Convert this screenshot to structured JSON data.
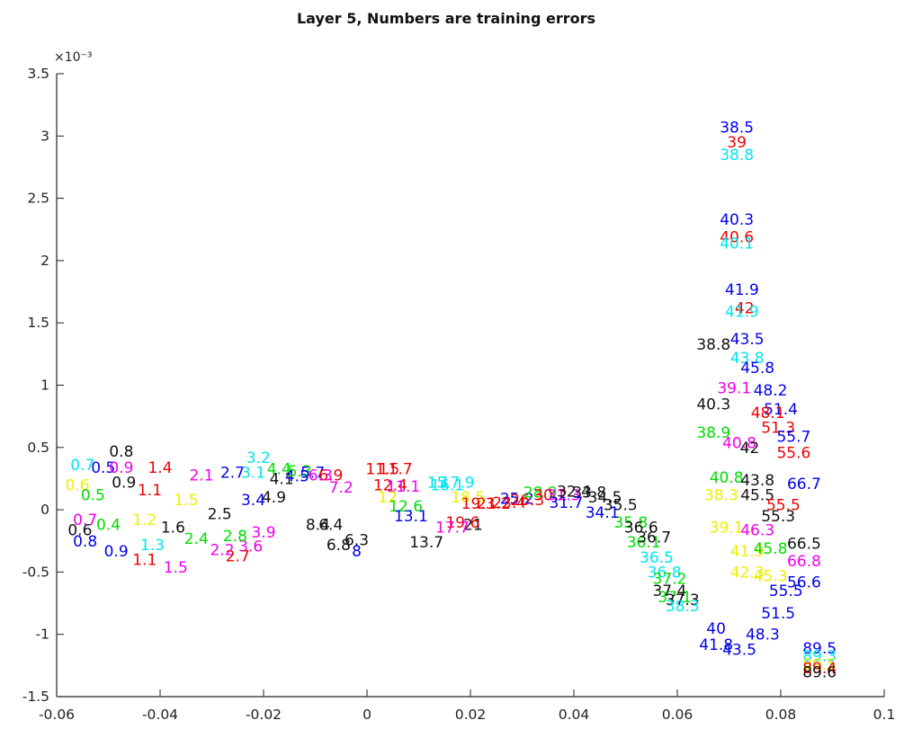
{
  "chart_data": {
    "type": "scatter",
    "title": "Layer 5, Numbers are training errors",
    "xlabel": "",
    "ylabel": "",
    "xlim": [
      -0.06,
      0.1
    ],
    "ylim": [
      -1.5,
      3.5
    ],
    "y_exponent_label": "×10⁻³",
    "x_ticks": [
      -0.06,
      -0.04,
      -0.02,
      0,
      0.02,
      0.04,
      0.06,
      0.08,
      0.1
    ],
    "x_tick_labels": [
      "-0.06",
      "-0.04",
      "-0.02",
      "0",
      "0.02",
      "0.04",
      "0.06",
      "0.08",
      "0.1"
    ],
    "y_ticks": [
      -1.5,
      -1,
      -0.5,
      0,
      0.5,
      1,
      1.5,
      2,
      2.5,
      3,
      3.5
    ],
    "y_tick_labels": [
      "-1.5",
      "-1",
      "-0.5",
      "0",
      "0.5",
      "1",
      "1.5",
      "2",
      "2.5",
      "3",
      "3.5"
    ],
    "grid": false,
    "colors": {
      "blue": "#0000ee",
      "red": "#ee0000",
      "cyan": "#00e5ee",
      "black": "#111111",
      "green": "#00dd00",
      "magenta": "#ee00ee",
      "yellow": "#eeee00"
    },
    "points": [
      {
        "x": 0.0715,
        "y": 3.07,
        "label": "38.5",
        "color": "blue"
      },
      {
        "x": 0.0715,
        "y": 2.95,
        "label": "39",
        "color": "red"
      },
      {
        "x": 0.0715,
        "y": 2.85,
        "label": "38.8",
        "color": "cyan"
      },
      {
        "x": 0.0715,
        "y": 2.33,
        "label": "40.3",
        "color": "blue"
      },
      {
        "x": 0.0715,
        "y": 2.19,
        "label": "40.6",
        "color": "red"
      },
      {
        "x": 0.0715,
        "y": 2.14,
        "label": "40.1",
        "color": "cyan"
      },
      {
        "x": 0.0725,
        "y": 1.77,
        "label": "41.9",
        "color": "blue"
      },
      {
        "x": 0.073,
        "y": 1.62,
        "label": "42",
        "color": "red"
      },
      {
        "x": 0.0725,
        "y": 1.59,
        "label": "41.9",
        "color": "cyan"
      },
      {
        "x": 0.067,
        "y": 1.33,
        "label": "38.8",
        "color": "black"
      },
      {
        "x": 0.0735,
        "y": 1.37,
        "label": "43.5",
        "color": "blue"
      },
      {
        "x": 0.0735,
        "y": 1.22,
        "label": "43.8",
        "color": "cyan"
      },
      {
        "x": 0.0755,
        "y": 1.14,
        "label": "45.8",
        "color": "blue"
      },
      {
        "x": 0.071,
        "y": 0.98,
        "label": "39.1",
        "color": "magenta"
      },
      {
        "x": 0.078,
        "y": 0.96,
        "label": "48.2",
        "color": "blue"
      },
      {
        "x": 0.067,
        "y": 0.85,
        "label": "40.3",
        "color": "black"
      },
      {
        "x": 0.08,
        "y": 0.81,
        "label": "51.4",
        "color": "blue"
      },
      {
        "x": 0.0775,
        "y": 0.78,
        "label": "48.1",
        "color": "red"
      },
      {
        "x": 0.0795,
        "y": 0.66,
        "label": "51.3",
        "color": "red"
      },
      {
        "x": 0.067,
        "y": 0.62,
        "label": "38.9",
        "color": "green"
      },
      {
        "x": 0.0825,
        "y": 0.59,
        "label": "55.7",
        "color": "blue"
      },
      {
        "x": 0.072,
        "y": 0.54,
        "label": "40.8",
        "color": "magenta"
      },
      {
        "x": 0.074,
        "y": 0.5,
        "label": "42",
        "color": "black"
      },
      {
        "x": 0.0825,
        "y": 0.46,
        "label": "55.6",
        "color": "red"
      },
      {
        "x": 0.0695,
        "y": 0.26,
        "label": "40.8",
        "color": "green"
      },
      {
        "x": 0.0755,
        "y": 0.24,
        "label": "43.8",
        "color": "black"
      },
      {
        "x": 0.0845,
        "y": 0.21,
        "label": "66.7",
        "color": "blue"
      },
      {
        "x": 0.0685,
        "y": 0.12,
        "label": "38.3",
        "color": "yellow"
      },
      {
        "x": 0.0755,
        "y": 0.12,
        "label": "45.5",
        "color": "black"
      },
      {
        "x": 0.0805,
        "y": 0.04,
        "label": "55.5",
        "color": "red"
      },
      {
        "x": 0.0795,
        "y": -0.05,
        "label": "55.3",
        "color": "black"
      },
      {
        "x": 0.0695,
        "y": -0.14,
        "label": "39.1",
        "color": "yellow"
      },
      {
        "x": 0.0755,
        "y": -0.16,
        "label": "46.3",
        "color": "magenta"
      },
      {
        "x": 0.0845,
        "y": -0.27,
        "label": "66.5",
        "color": "black"
      },
      {
        "x": 0.0735,
        "y": -0.33,
        "label": "41.9",
        "color": "yellow"
      },
      {
        "x": 0.078,
        "y": -0.31,
        "label": "45.8",
        "color": "green"
      },
      {
        "x": 0.0845,
        "y": -0.41,
        "label": "66.8",
        "color": "magenta"
      },
      {
        "x": 0.0735,
        "y": -0.5,
        "label": "42.3",
        "color": "yellow"
      },
      {
        "x": 0.078,
        "y": -0.53,
        "label": "45.3",
        "color": "yellow"
      },
      {
        "x": 0.0845,
        "y": -0.58,
        "label": "56.6",
        "color": "blue"
      },
      {
        "x": 0.081,
        "y": -0.65,
        "label": "55.5",
        "color": "blue"
      },
      {
        "x": 0.0795,
        "y": -0.83,
        "label": "51.5",
        "color": "blue"
      },
      {
        "x": 0.0675,
        "y": -0.95,
        "label": "40",
        "color": "blue"
      },
      {
        "x": 0.0765,
        "y": -1.0,
        "label": "48.3",
        "color": "blue"
      },
      {
        "x": 0.0675,
        "y": -1.08,
        "label": "41.8",
        "color": "blue"
      },
      {
        "x": 0.072,
        "y": -1.12,
        "label": "43.5",
        "color": "blue"
      },
      {
        "x": 0.0875,
        "y": -1.11,
        "label": "89.5",
        "color": "blue"
      },
      {
        "x": 0.0875,
        "y": -1.17,
        "label": "89.3",
        "color": "cyan"
      },
      {
        "x": 0.0875,
        "y": -1.24,
        "label": "89.5",
        "color": "yellow"
      },
      {
        "x": 0.0875,
        "y": -1.27,
        "label": "89.4",
        "color": "red"
      },
      {
        "x": 0.0875,
        "y": -1.3,
        "label": "89.6",
        "color": "black"
      },
      {
        "x": -0.0475,
        "y": 0.47,
        "label": "0.8",
        "color": "black"
      },
      {
        "x": -0.04,
        "y": 0.34,
        "label": "1.4",
        "color": "red"
      },
      {
        "x": -0.055,
        "y": 0.36,
        "label": "0.7",
        "color": "cyan"
      },
      {
        "x": -0.051,
        "y": 0.34,
        "label": "0.5",
        "color": "blue"
      },
      {
        "x": -0.0475,
        "y": 0.34,
        "label": "0.9",
        "color": "magenta"
      },
      {
        "x": -0.047,
        "y": 0.22,
        "label": "0.9",
        "color": "black"
      },
      {
        "x": -0.056,
        "y": 0.2,
        "label": "0.6",
        "color": "yellow"
      },
      {
        "x": -0.053,
        "y": 0.12,
        "label": "0.5",
        "color": "green"
      },
      {
        "x": -0.0545,
        "y": -0.08,
        "label": "0.7",
        "color": "magenta"
      },
      {
        "x": -0.0555,
        "y": -0.16,
        "label": "0.6",
        "color": "black"
      },
      {
        "x": -0.0545,
        "y": -0.25,
        "label": "0.8",
        "color": "blue"
      },
      {
        "x": -0.05,
        "y": -0.12,
        "label": "0.4",
        "color": "green"
      },
      {
        "x": -0.0485,
        "y": -0.33,
        "label": "0.9",
        "color": "blue"
      },
      {
        "x": -0.043,
        "y": -0.4,
        "label": "1.1",
        "color": "red"
      },
      {
        "x": -0.0415,
        "y": -0.28,
        "label": "1.3",
        "color": "cyan"
      },
      {
        "x": -0.037,
        "y": -0.46,
        "label": "1.5",
        "color": "magenta"
      },
      {
        "x": -0.043,
        "y": -0.08,
        "label": "1.2",
        "color": "yellow"
      },
      {
        "x": -0.035,
        "y": 0.08,
        "label": "1.5",
        "color": "yellow"
      },
      {
        "x": -0.0375,
        "y": -0.14,
        "label": "1.6",
        "color": "black"
      },
      {
        "x": -0.042,
        "y": 0.16,
        "label": "1.1",
        "color": "red"
      },
      {
        "x": -0.032,
        "y": 0.28,
        "label": "2.1",
        "color": "magenta"
      },
      {
        "x": -0.028,
        "y": -0.32,
        "label": "2.2",
        "color": "magenta"
      },
      {
        "x": -0.033,
        "y": -0.23,
        "label": "2.4",
        "color": "green"
      },
      {
        "x": -0.0285,
        "y": -0.03,
        "label": "2.5",
        "color": "black"
      },
      {
        "x": -0.026,
        "y": 0.3,
        "label": "2.7",
        "color": "blue"
      },
      {
        "x": -0.022,
        "y": 0.3,
        "label": "3.1",
        "color": "cyan"
      },
      {
        "x": -0.021,
        "y": 0.42,
        "label": "3.2",
        "color": "cyan"
      },
      {
        "x": -0.022,
        "y": 0.08,
        "label": "3.4",
        "color": "blue"
      },
      {
        "x": -0.02,
        "y": -0.18,
        "label": "3.9",
        "color": "magenta"
      },
      {
        "x": -0.0225,
        "y": -0.29,
        "label": "3.6",
        "color": "magenta"
      },
      {
        "x": -0.025,
        "y": -0.37,
        "label": "2.7",
        "color": "red"
      },
      {
        "x": -0.0255,
        "y": -0.21,
        "label": "2.8",
        "color": "green"
      },
      {
        "x": -0.017,
        "y": 0.33,
        "label": "4.4",
        "color": "green"
      },
      {
        "x": -0.0165,
        "y": 0.25,
        "label": "4.1",
        "color": "black"
      },
      {
        "x": -0.0135,
        "y": 0.27,
        "label": "4.5",
        "color": "blue"
      },
      {
        "x": -0.018,
        "y": 0.1,
        "label": "4.9",
        "color": "black"
      },
      {
        "x": -0.013,
        "y": 0.31,
        "label": "5.3",
        "color": "green"
      },
      {
        "x": -0.0105,
        "y": 0.3,
        "label": "5.7",
        "color": "blue"
      },
      {
        "x": -0.007,
        "y": 0.28,
        "label": "6.9",
        "color": "red"
      },
      {
        "x": -0.009,
        "y": 0.28,
        "label": "6.3",
        "color": "magenta"
      },
      {
        "x": -0.005,
        "y": 0.18,
        "label": "7.2",
        "color": "magenta"
      },
      {
        "x": -0.007,
        "y": -0.12,
        "label": "6.4",
        "color": "black"
      },
      {
        "x": -0.0055,
        "y": -0.28,
        "label": "6.8",
        "color": "black"
      },
      {
        "x": -0.002,
        "y": -0.24,
        "label": "6.3",
        "color": "black"
      },
      {
        "x": -0.002,
        "y": -0.33,
        "label": "8",
        "color": "blue"
      },
      {
        "x": -0.0095,
        "y": -0.12,
        "label": "8.4",
        "color": "black"
      },
      {
        "x": 0.003,
        "y": 0.33,
        "label": "11.5",
        "color": "red"
      },
      {
        "x": 0.0055,
        "y": 0.33,
        "label": "11.7",
        "color": "red"
      },
      {
        "x": 0.0045,
        "y": 0.2,
        "label": "12.4",
        "color": "red"
      },
      {
        "x": 0.007,
        "y": 0.19,
        "label": "11.1",
        "color": "magenta"
      },
      {
        "x": 0.004,
        "y": 0.1,
        "label": "12",
        "color": "yellow"
      },
      {
        "x": 0.0075,
        "y": 0.03,
        "label": "12.6",
        "color": "green"
      },
      {
        "x": 0.0085,
        "y": -0.05,
        "label": "13.1",
        "color": "blue"
      },
      {
        "x": 0.0115,
        "y": -0.26,
        "label": "13.7",
        "color": "black"
      },
      {
        "x": 0.0135,
        "y": 0.22,
        "label": "15",
        "color": "cyan"
      },
      {
        "x": 0.0155,
        "y": 0.2,
        "label": "16.1",
        "color": "cyan"
      },
      {
        "x": 0.0175,
        "y": 0.22,
        "label": "17.9",
        "color": "cyan"
      },
      {
        "x": 0.0195,
        "y": 0.1,
        "label": "18.5",
        "color": "yellow"
      },
      {
        "x": 0.0215,
        "y": 0.05,
        "label": "19.3",
        "color": "red"
      },
      {
        "x": 0.0245,
        "y": 0.05,
        "label": "21.2",
        "color": "red"
      },
      {
        "x": 0.0205,
        "y": -0.12,
        "label": "21",
        "color": "black"
      },
      {
        "x": 0.0185,
        "y": -0.1,
        "label": "19.6",
        "color": "red"
      },
      {
        "x": 0.0165,
        "y": -0.14,
        "label": "17.7",
        "color": "magenta"
      },
      {
        "x": 0.0275,
        "y": 0.06,
        "label": "23.4",
        "color": "red"
      },
      {
        "x": 0.029,
        "y": 0.09,
        "label": "25.2",
        "color": "blue"
      },
      {
        "x": 0.031,
        "y": 0.08,
        "label": "26.3",
        "color": "red"
      },
      {
        "x": 0.0335,
        "y": 0.14,
        "label": "28.9",
        "color": "green"
      },
      {
        "x": 0.0355,
        "y": 0.12,
        "label": "30.2",
        "color": "red"
      },
      {
        "x": 0.038,
        "y": 0.12,
        "label": "31.3",
        "color": "magenta"
      },
      {
        "x": 0.04,
        "y": 0.15,
        "label": "32.4",
        "color": "black"
      },
      {
        "x": 0.043,
        "y": 0.14,
        "label": "33.8",
        "color": "black"
      },
      {
        "x": 0.046,
        "y": 0.1,
        "label": "34.5",
        "color": "black"
      },
      {
        "x": 0.049,
        "y": 0.04,
        "label": "35.5",
        "color": "black"
      },
      {
        "x": 0.051,
        "y": -0.1,
        "label": "35.8",
        "color": "green"
      },
      {
        "x": 0.053,
        "y": -0.14,
        "label": "36.6",
        "color": "black"
      },
      {
        "x": 0.0535,
        "y": -0.26,
        "label": "36.1",
        "color": "green"
      },
      {
        "x": 0.0555,
        "y": -0.22,
        "label": "36.7",
        "color": "black"
      },
      {
        "x": 0.056,
        "y": -0.38,
        "label": "36.5",
        "color": "cyan"
      },
      {
        "x": 0.0575,
        "y": -0.5,
        "label": "36.8",
        "color": "cyan"
      },
      {
        "x": 0.0585,
        "y": -0.55,
        "label": "37.2",
        "color": "green"
      },
      {
        "x": 0.0585,
        "y": -0.65,
        "label": "37.4",
        "color": "black"
      },
      {
        "x": 0.0595,
        "y": -0.7,
        "label": "37.1",
        "color": "green"
      },
      {
        "x": 0.061,
        "y": -0.72,
        "label": "37.3",
        "color": "black"
      },
      {
        "x": 0.061,
        "y": -0.77,
        "label": "38.3",
        "color": "cyan"
      },
      {
        "x": 0.0385,
        "y": 0.06,
        "label": "31.7",
        "color": "blue"
      },
      {
        "x": 0.0455,
        "y": -0.02,
        "label": "34.1",
        "color": "blue"
      }
    ]
  }
}
